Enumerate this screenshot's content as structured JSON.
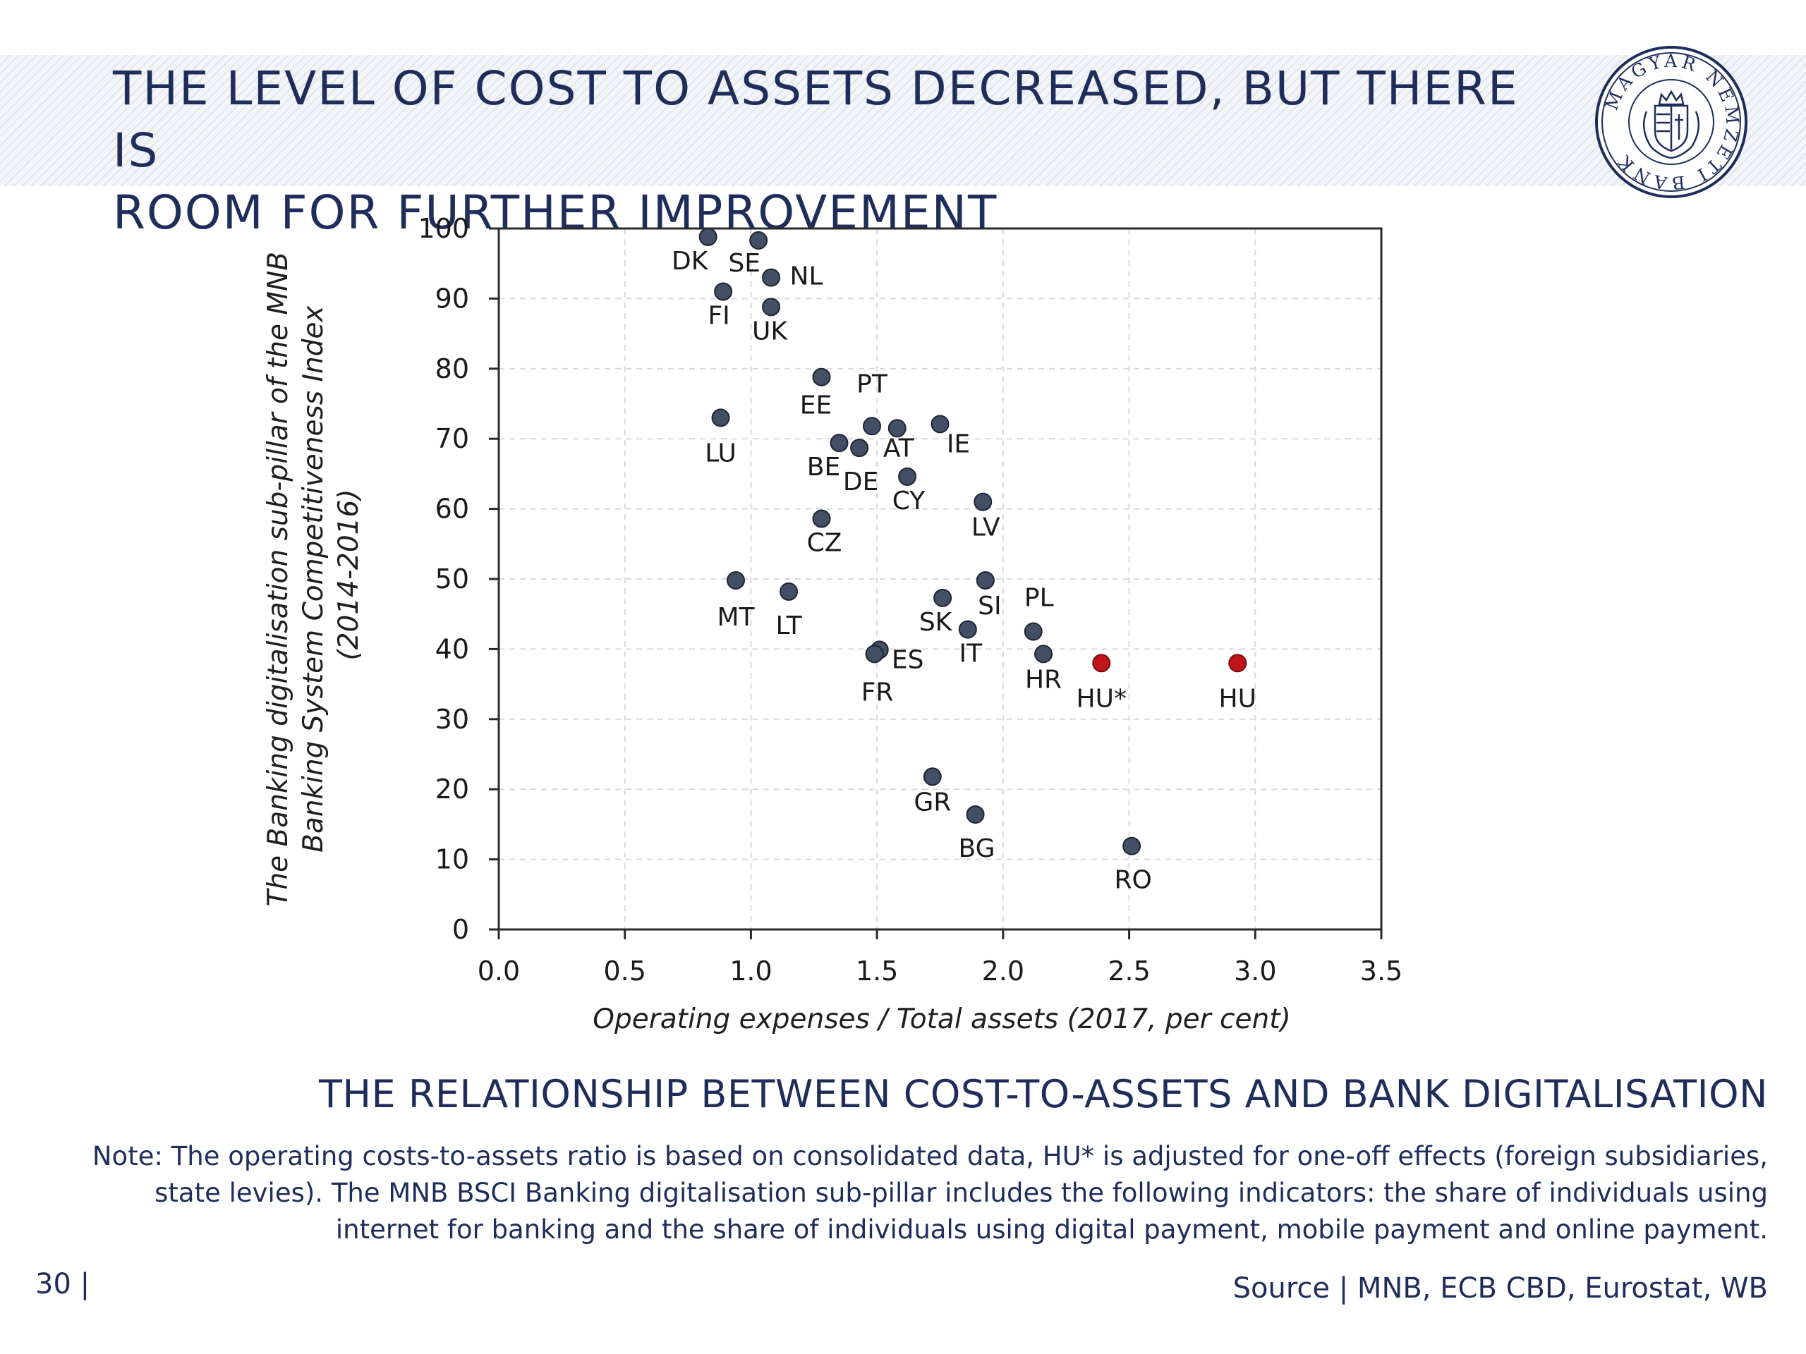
{
  "header": {
    "title_line1": "THE LEVEL OF COST TO ASSETS DECREASED, BUT THERE IS",
    "title_line2": "ROOM FOR FURTHER IMPROVEMENT",
    "logo_text": "MAGYAR NEMZETI BANK",
    "logo_icon": "coat-of-arms-icon"
  },
  "colors": {
    "navy": "#1f2d5a",
    "point": "#434f64",
    "highlight": "#c0141a",
    "grid": "#d6d9df"
  },
  "chart_data": {
    "type": "scatter",
    "title": "THE RELATIONSHIP BETWEEN COST-TO-ASSETS AND BANK DIGITALISATION",
    "xlabel": "Operating expenses / Total assets (2017, per cent)",
    "ylabel_lines": [
      "The Banking digitalisation sub-pillar of the MNB",
      "Banking System Competitiveness Index",
      "(2014-2016)"
    ],
    "xlim": [
      0,
      3.5
    ],
    "ylim": [
      0,
      100
    ],
    "xticks": [
      "0.0",
      "0.5",
      "1.0",
      "1.5",
      "2.0",
      "2.5",
      "3.0",
      "3.5"
    ],
    "yticks": [
      "0",
      "10",
      "20",
      "30",
      "40",
      "50",
      "60",
      "70",
      "80",
      "90",
      "100"
    ],
    "grid": true,
    "legend": "none",
    "points": [
      {
        "label": "DK",
        "x": 0.83,
        "y": 98.8
      },
      {
        "label": "SE",
        "x": 1.03,
        "y": 98.3
      },
      {
        "label": "NL",
        "x": 1.08,
        "y": 93.0
      },
      {
        "label": "FI",
        "x": 0.89,
        "y": 91.0
      },
      {
        "label": "UK",
        "x": 1.08,
        "y": 88.8
      },
      {
        "label": "EE",
        "x": 1.28,
        "y": 78.8
      },
      {
        "label": "LU",
        "x": 0.88,
        "y": 73.0
      },
      {
        "label": "PT",
        "x": 1.48,
        "y": 71.8
      },
      {
        "label": "AT",
        "x": 1.58,
        "y": 71.5
      },
      {
        "label": "IE",
        "x": 1.75,
        "y": 72.1
      },
      {
        "label": "BE",
        "x": 1.35,
        "y": 69.4
      },
      {
        "label": "DE",
        "x": 1.43,
        "y": 68.7
      },
      {
        "label": "CY",
        "x": 1.62,
        "y": 64.6
      },
      {
        "label": "LV",
        "x": 1.92,
        "y": 61.0
      },
      {
        "label": "CZ",
        "x": 1.28,
        "y": 58.6
      },
      {
        "label": "MT",
        "x": 0.94,
        "y": 49.8
      },
      {
        "label": "LT",
        "x": 1.15,
        "y": 48.2
      },
      {
        "label": "SI",
        "x": 1.93,
        "y": 49.8
      },
      {
        "label": "SK",
        "x": 1.76,
        "y": 47.3
      },
      {
        "label": "PL",
        "x": 2.12,
        "y": 42.5
      },
      {
        "label": "IT",
        "x": 1.86,
        "y": 42.8
      },
      {
        "label": "ES",
        "x": 1.51,
        "y": 39.9
      },
      {
        "label": "FR",
        "x": 1.49,
        "y": 39.3
      },
      {
        "label": "HR",
        "x": 2.16,
        "y": 39.3
      },
      {
        "label": "HU*",
        "x": 2.39,
        "y": 38.0,
        "highlight": true
      },
      {
        "label": "HU",
        "x": 2.93,
        "y": 38.0,
        "highlight": true
      },
      {
        "label": "GR",
        "x": 1.72,
        "y": 21.8
      },
      {
        "label": "BG",
        "x": 1.89,
        "y": 16.4
      },
      {
        "label": "RO",
        "x": 2.51,
        "y": 11.9
      }
    ]
  },
  "note": {
    "line1": "Note: The operating costs-to-assets ratio is based on consolidated data, HU* is adjusted for one-off effects (foreign subsidiaries,",
    "line2": "state levies). The MNB BSCI Banking digitalisation sub-pillar includes the following indicators: the share of individuals using",
    "line3": "internet for banking and the share of individuals using digital payment, mobile payment and online payment."
  },
  "footer": {
    "page_number": "30 |",
    "source": "Source | MNB, ECB CBD, Eurostat, WB"
  }
}
